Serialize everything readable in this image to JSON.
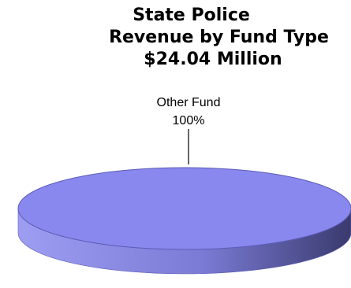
{
  "chart_data": {
    "type": "pie",
    "title_lines": [
      "State Police",
      "Revenue by Fund Type",
      "$24.04 Million"
    ],
    "slices": [
      {
        "label": "Other Fund",
        "value": 100,
        "percent_label": "100%"
      }
    ],
    "colors": {
      "top": "#8888ee",
      "top_edge": "#5c5cb8",
      "side_light": "#9d9df2",
      "side_dark": "#3a3a6e",
      "leader": "#000000"
    },
    "style": "3d"
  }
}
